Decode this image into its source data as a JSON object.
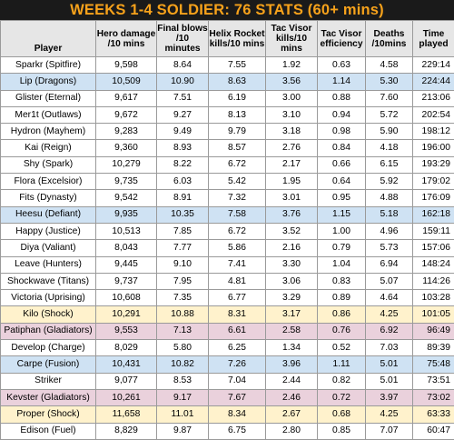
{
  "title": "WEEKS 1-4 SOLDIER: 76 STATS (60+ mins)",
  "colors": {
    "title_background": "#1a1a1a",
    "title_text": "#f7a21b",
    "header_background": "#e6e6e6",
    "row_default": "#ffffff",
    "row_blue": "#cfe2f3",
    "row_pink": "#ead1dc",
    "row_yellow": "#fff2cc"
  },
  "columns": [
    "Player",
    "Hero damage /10 mins",
    "Final blows /10 minutes",
    "Helix Rocket kills/10 mins",
    "Tac Visor kills/10 mins",
    "Tac Visor efficiency",
    "Deaths /10mins",
    "Time played"
  ],
  "rows": [
    {
      "cells": [
        "Sparkr (Spitfire)",
        "9,598",
        "8.64",
        "7.55",
        "1.92",
        "0.63",
        "4.58",
        "229:14"
      ],
      "highlight": "none"
    },
    {
      "cells": [
        "Lip (Dragons)",
        "10,509",
        "10.90",
        "8.63",
        "3.56",
        "1.14",
        "5.30",
        "224:44"
      ],
      "highlight": "blue"
    },
    {
      "cells": [
        "Glister (Eternal)",
        "9,617",
        "7.51",
        "6.19",
        "3.00",
        "0.88",
        "7.60",
        "213:06"
      ],
      "highlight": "none"
    },
    {
      "cells": [
        "Mer1t (Outlaws)",
        "9,672",
        "9.27",
        "8.13",
        "3.10",
        "0.94",
        "5.72",
        "202:54"
      ],
      "highlight": "none"
    },
    {
      "cells": [
        "Hydron (Mayhem)",
        "9,283",
        "9.49",
        "9.79",
        "3.18",
        "0.98",
        "5.90",
        "198:12"
      ],
      "highlight": "none"
    },
    {
      "cells": [
        "Kai (Reign)",
        "9,360",
        "8.93",
        "8.57",
        "2.76",
        "0.84",
        "4.18",
        "196:00"
      ],
      "highlight": "none"
    },
    {
      "cells": [
        "Shy (Spark)",
        "10,279",
        "8.22",
        "6.72",
        "2.17",
        "0.66",
        "6.15",
        "193:29"
      ],
      "highlight": "none"
    },
    {
      "cells": [
        "Flora (Excelsior)",
        "9,735",
        "6.03",
        "5.42",
        "1.95",
        "0.64",
        "5.92",
        "179:02"
      ],
      "highlight": "none"
    },
    {
      "cells": [
        "Fits (Dynasty)",
        "9,542",
        "8.91",
        "7.32",
        "3.01",
        "0.95",
        "4.88",
        "176:09"
      ],
      "highlight": "none"
    },
    {
      "cells": [
        "Heesu (Defiant)",
        "9,935",
        "10.35",
        "7.58",
        "3.76",
        "1.15",
        "5.18",
        "162:18"
      ],
      "highlight": "blue"
    },
    {
      "cells": [
        "Happy (Justice)",
        "10,513",
        "7.85",
        "6.72",
        "3.52",
        "1.00",
        "4.96",
        "159:11"
      ],
      "highlight": "none"
    },
    {
      "cells": [
        "Diya (Valiant)",
        "8,043",
        "7.77",
        "5.86",
        "2.16",
        "0.79",
        "5.73",
        "157:06"
      ],
      "highlight": "none"
    },
    {
      "cells": [
        "Leave (Hunters)",
        "9,445",
        "9.10",
        "7.41",
        "3.30",
        "1.04",
        "6.94",
        "148:24"
      ],
      "highlight": "none"
    },
    {
      "cells": [
        "Shockwave (Titans)",
        "9,737",
        "7.95",
        "4.81",
        "3.06",
        "0.83",
        "5.07",
        "114:26"
      ],
      "highlight": "none"
    },
    {
      "cells": [
        "Victoria (Uprising)",
        "10,608",
        "7.35",
        "6.77",
        "3.29",
        "0.89",
        "4.64",
        "103:28"
      ],
      "highlight": "none"
    },
    {
      "cells": [
        "Kilo (Shock)",
        "10,291",
        "10.88",
        "8.31",
        "3.17",
        "0.86",
        "4.25",
        "101:05"
      ],
      "highlight": "yellow"
    },
    {
      "cells": [
        "Patiphan (Gladiators)",
        "9,553",
        "7.13",
        "6.61",
        "2.58",
        "0.76",
        "6.92",
        "96:49"
      ],
      "highlight": "pink"
    },
    {
      "cells": [
        "Develop (Charge)",
        "8,029",
        "5.80",
        "6.25",
        "1.34",
        "0.52",
        "7.03",
        "89:39"
      ],
      "highlight": "none"
    },
    {
      "cells": [
        "Carpe (Fusion)",
        "10,431",
        "10.82",
        "7.26",
        "3.96",
        "1.11",
        "5.01",
        "75:48"
      ],
      "highlight": "blue"
    },
    {
      "cells": [
        "Striker",
        "9,077",
        "8.53",
        "7.04",
        "2.44",
        "0.82",
        "5.01",
        "73:51"
      ],
      "highlight": "none"
    },
    {
      "cells": [
        "Kevster (Gladiators)",
        "10,261",
        "9.17",
        "7.67",
        "2.46",
        "0.72",
        "3.97",
        "73:02"
      ],
      "highlight": "pink"
    },
    {
      "cells": [
        "Proper (Shock)",
        "11,658",
        "11.01",
        "8.34",
        "2.67",
        "0.68",
        "4.25",
        "63:33"
      ],
      "highlight": "yellow"
    },
    {
      "cells": [
        "Edison (Fuel)",
        "8,829",
        "9.87",
        "6.75",
        "2.80",
        "0.85",
        "7.07",
        "60:47"
      ],
      "highlight": "none"
    }
  ]
}
